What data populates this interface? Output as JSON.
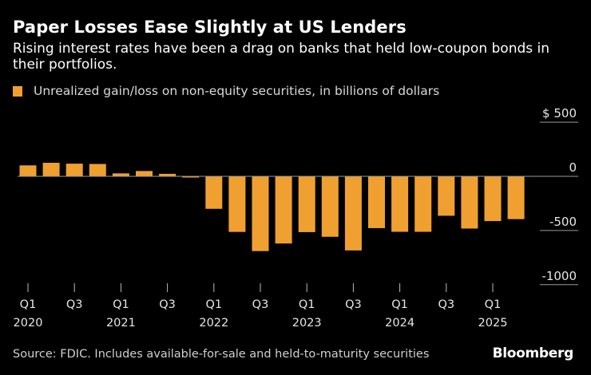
{
  "header": {
    "title": "Paper Losses Ease Slightly at US Lenders",
    "subtitle": "Rising interest rates have been a drag on banks that held low-coupon bonds in their portfolios."
  },
  "legend": {
    "label": "Unrealized gain/loss on non-equity securities, in billions of dollars"
  },
  "footer": {
    "source": "Source: FDIC. Includes available-for-sale and held-to-maturity securities",
    "brand": "Bloomberg"
  },
  "colors": {
    "bar": "#f0a030",
    "background": "#000000",
    "axis": "#bbbbbb"
  },
  "chart_data": {
    "type": "bar",
    "title": "Paper Losses Ease Slightly at US Lenders",
    "xlabel": "",
    "ylabel": "Unrealized gain/loss on non-equity securities, in billions of dollars",
    "categories": [
      "Q1 2020",
      "Q2 2020",
      "Q3 2020",
      "Q4 2020",
      "Q1 2021",
      "Q2 2021",
      "Q3 2021",
      "Q4 2021",
      "Q1 2022",
      "Q2 2022",
      "Q3 2022",
      "Q4 2022",
      "Q1 2023",
      "Q2 2023",
      "Q3 2023",
      "Q4 2023",
      "Q1 2024",
      "Q2 2024",
      "Q3 2024",
      "Q4 2024",
      "Q1 2025",
      "Q2 2025"
    ],
    "values": [
      101,
      125,
      117,
      114,
      27,
      49,
      23,
      -8,
      -300,
      -513,
      -690,
      -620,
      -515,
      -558,
      -684,
      -478,
      -512,
      -512,
      -364,
      -482,
      -413,
      -395
    ],
    "ylim": [
      -1000,
      500
    ],
    "yticks": [
      500,
      0,
      -500,
      -1000
    ],
    "ytick_labels": [
      "$ 500",
      "0",
      "-500",
      "-1000"
    ],
    "x_tick_labels": [
      {
        "index": 0,
        "quarter": "Q1",
        "year": "2020"
      },
      {
        "index": 2,
        "quarter": "Q3",
        "year": ""
      },
      {
        "index": 4,
        "quarter": "Q1",
        "year": "2021"
      },
      {
        "index": 6,
        "quarter": "Q3",
        "year": ""
      },
      {
        "index": 8,
        "quarter": "Q1",
        "year": "2022"
      },
      {
        "index": 10,
        "quarter": "Q3",
        "year": ""
      },
      {
        "index": 12,
        "quarter": "Q1",
        "year": "2023"
      },
      {
        "index": 14,
        "quarter": "Q3",
        "year": ""
      },
      {
        "index": 16,
        "quarter": "Q1",
        "year": "2024"
      },
      {
        "index": 18,
        "quarter": "Q3",
        "year": ""
      },
      {
        "index": 20,
        "quarter": "Q1",
        "year": "2025"
      }
    ],
    "grid": false,
    "legend_position": "top-left"
  }
}
